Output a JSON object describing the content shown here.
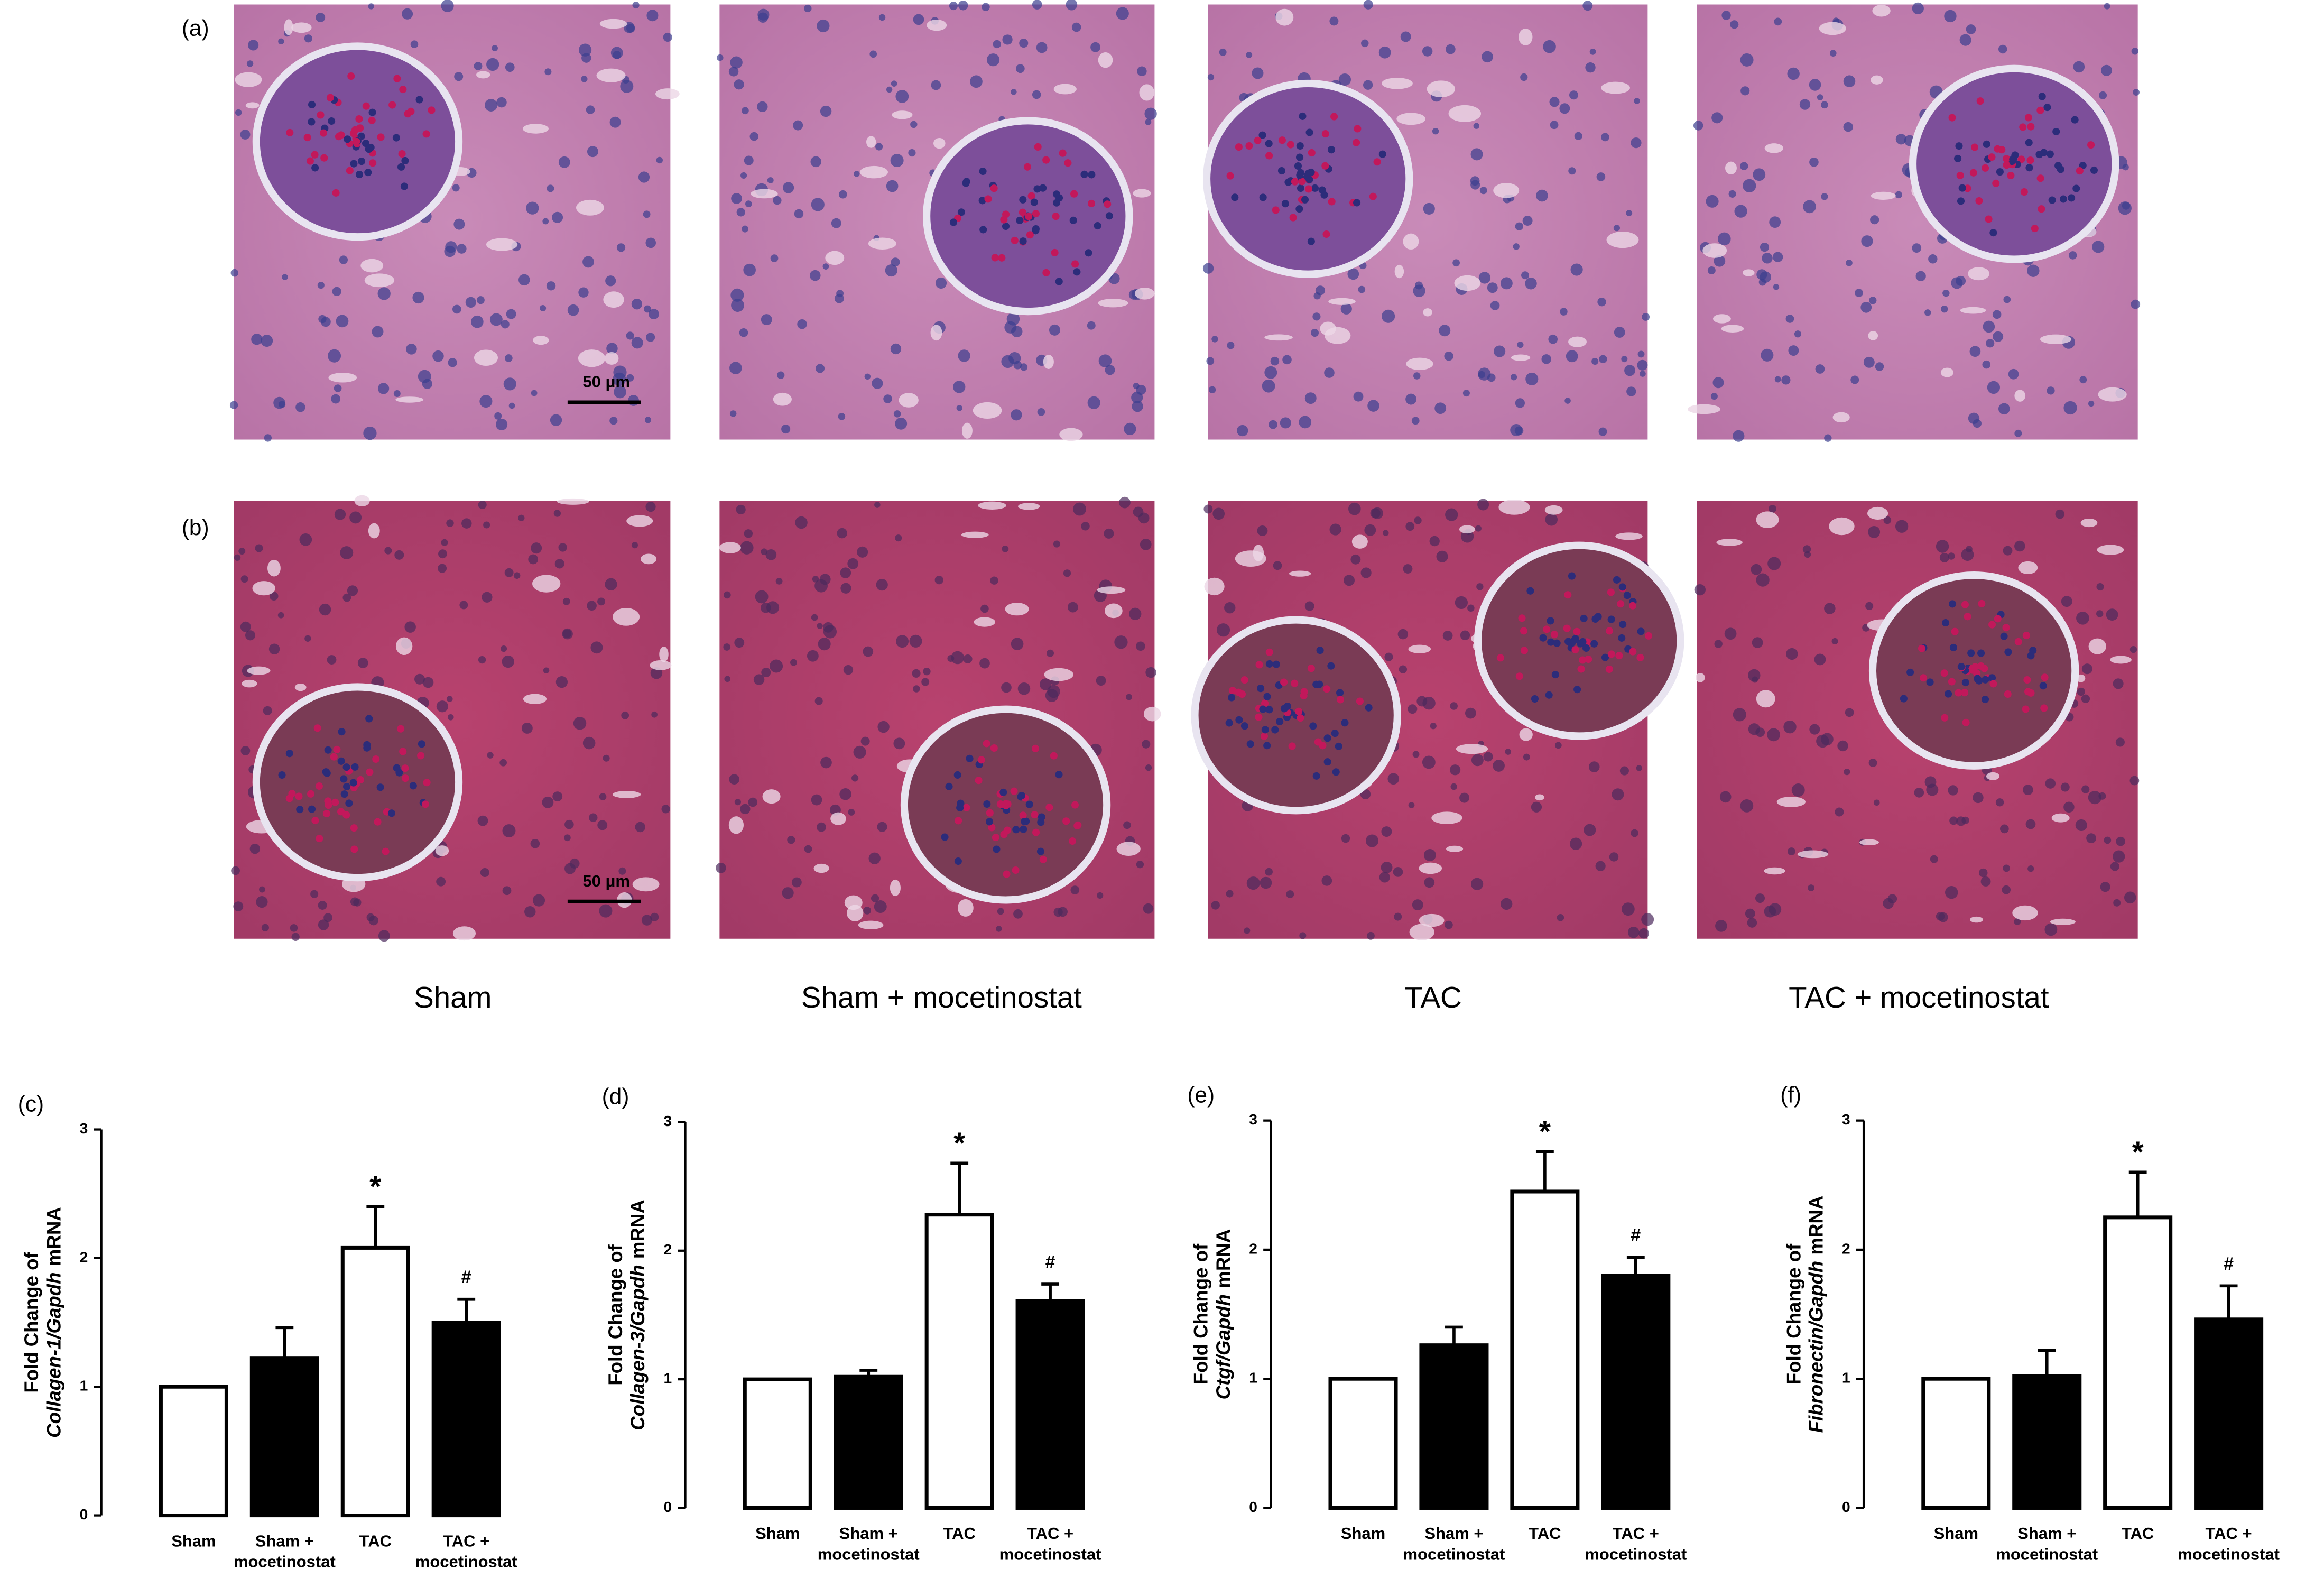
{
  "figure": {
    "panel_labels": [
      "(a)",
      "(b)"
    ],
    "scale_bars": [
      "50 μm",
      "50 μm"
    ],
    "group_labels": [
      "Sham",
      "Sham + mocetinostat",
      "TAC",
      "TAC + mocetinostat"
    ]
  },
  "chart_data": [
    {
      "type": "bar",
      "panel_label": "(c)",
      "ylabel": [
        "Fold Change of",
        "Collagen-1/Gapdh",
        "mRNA"
      ],
      "categories": [
        "Sham",
        "Sham + mocetinostat",
        "TAC",
        "TAC + mocetinostat"
      ],
      "values": [
        1,
        1.22,
        2.08,
        1.5
      ],
      "errors": [
        0,
        0.24,
        0.32,
        0.18
      ],
      "colors": [
        "#ffffff",
        "#000000",
        "#ffffff",
        "#000000"
      ],
      "ylim": [
        0,
        3
      ],
      "yticks": [
        0,
        1,
        2,
        3
      ],
      "annotations": [
        {
          "text": "*",
          "category": "TAC"
        },
        {
          "text": "#",
          "category": "TAC + mocetinostat"
        }
      ]
    },
    {
      "type": "bar",
      "panel_label": "(d)",
      "ylabel": [
        "Fold Change of",
        "Collagen-3/Gapdh",
        "mRNA"
      ],
      "categories": [
        "Sham",
        "Sham + mocetinostat",
        "TAC",
        "TAC + mocetinostat"
      ],
      "values": [
        1,
        1.02,
        2.28,
        1.61
      ],
      "errors": [
        0,
        0.05,
        0.4,
        0.13
      ],
      "colors": [
        "#ffffff",
        "#000000",
        "#ffffff",
        "#000000"
      ],
      "ylim": [
        0,
        3
      ],
      "yticks": [
        0,
        1,
        2,
        3
      ],
      "annotations": [
        {
          "text": "*",
          "category": "TAC"
        },
        {
          "text": "#",
          "category": "TAC + mocetinostat"
        }
      ]
    },
    {
      "type": "bar",
      "panel_label": "(e)",
      "ylabel": [
        "Fold Change of",
        "Ctgf/Gapdh",
        "mRNA"
      ],
      "categories": [
        "Sham",
        "Sham + mocetinostat",
        "TAC",
        "TAC + mocetinostat"
      ],
      "values": [
        1,
        1.26,
        2.45,
        1.8
      ],
      "errors": [
        0,
        0.14,
        0.31,
        0.14
      ],
      "colors": [
        "#ffffff",
        "#000000",
        "#ffffff",
        "#000000"
      ],
      "ylim": [
        0,
        3
      ],
      "yticks": [
        0,
        1,
        2,
        3
      ],
      "annotations": [
        {
          "text": "*",
          "category": "TAC"
        },
        {
          "text": "#",
          "category": "TAC + mocetinostat"
        }
      ]
    },
    {
      "type": "bar",
      "panel_label": "(f)",
      "ylabel": [
        "Fold Change of",
        "Fibronectin/Gapdh",
        "mRNA"
      ],
      "categories": [
        "Sham",
        "Sham + mocetinostat",
        "TAC",
        "TAC + mocetinostat"
      ],
      "values": [
        1,
        1.02,
        2.25,
        1.46
      ],
      "errors": [
        0,
        0.2,
        0.35,
        0.26
      ],
      "colors": [
        "#ffffff",
        "#000000",
        "#ffffff",
        "#000000"
      ],
      "ylim": [
        0,
        3
      ],
      "yticks": [
        0,
        1,
        2,
        3
      ],
      "annotations": [
        {
          "text": "*",
          "category": "TAC"
        },
        {
          "text": "#",
          "category": "TAC + mocetinostat"
        }
      ]
    }
  ]
}
